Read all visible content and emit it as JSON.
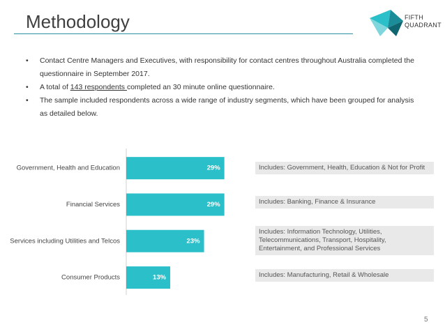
{
  "header": {
    "title": "Methodology",
    "logo": [
      "FIFTH",
      "QUADRANT"
    ]
  },
  "bullets": [
    "Contact Centre Managers and Executives, with responsibility for contact centres throughout Australia completed the questionnaire in September 2017.",
    [
      "A total of ",
      "143 respondents ",
      " completed an 30 minute online questionnaire."
    ],
    "The sample included respondents across a wide range of industry segments, which have been grouped for analysis as detailed below."
  ],
  "chart_data": {
    "type": "bar",
    "orientation": "horizontal",
    "categories": [
      "Government, Health and Education",
      "Financial Services",
      "Services including Utilities and Telcos",
      "Consumer Products"
    ],
    "values": [
      29,
      29,
      23,
      13
    ],
    "value_labels": [
      "29%",
      "29%",
      "23%",
      "13%"
    ],
    "color": "#2bbfc9"
  },
  "notes": [
    "Includes: Government, Health, Education & Not for Profit",
    "Includes: Banking, Finance & Insurance",
    "Includes: Information Technology, Utilities, Telecommunications, Transport, Hospitality, Entertainment, and Professional Services",
    "Includes: Manufacturing, Retail & Wholesale"
  ],
  "page_number": "5"
}
